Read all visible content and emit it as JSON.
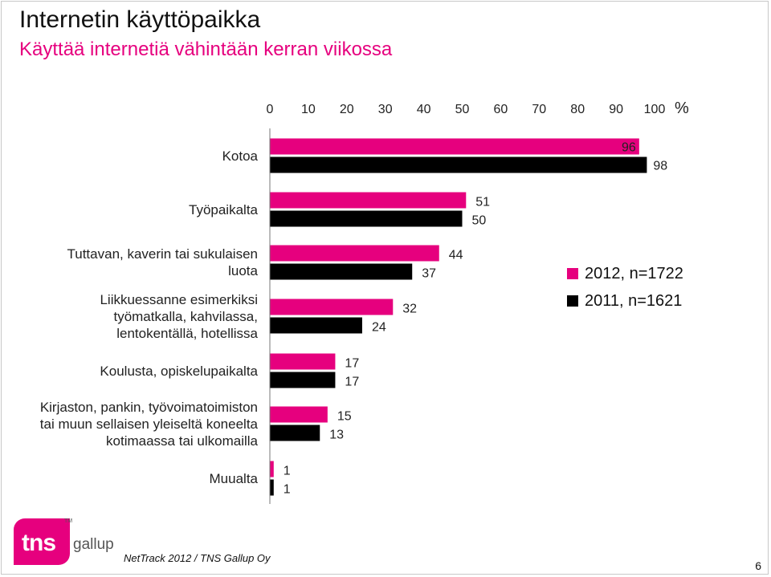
{
  "header": {
    "title": "Internetin käyttöpaikka",
    "subtitle": "Käyttää internetiä vähintään kerran viikossa"
  },
  "chart_data": {
    "type": "bar",
    "orientation": "horizontal",
    "axis_unit": "%",
    "xlim": [
      0,
      100
    ],
    "ticks": [
      0,
      10,
      20,
      30,
      40,
      50,
      60,
      70,
      80,
      90,
      100
    ],
    "grid": false,
    "legend_position": "right",
    "categories": [
      "Kotoa",
      "Työpaikalta",
      "Tuttavan, kaverin tai sukulaisen luota",
      "Liikkuessanne esimerkiksi työmatkalla, kahvilassa, lentokentällä, hotellissa",
      "Koulusta, opiskelupaikalta",
      "Kirjaston, pankin, työvoimatoimiston tai muun sellaisen yleiseltä koneelta kotimaassa tai ulkomailla",
      "Muualta"
    ],
    "category_lines": [
      [
        "Kotoa"
      ],
      [
        "Työpaikalta"
      ],
      [
        "Tuttavan, kaverin tai sukulaisen",
        "luota"
      ],
      [
        "Liikkuessanne esimerkiksi",
        "työmatkalla, kahvilassa,",
        "lentokentällä, hotellissa"
      ],
      [
        "Koulusta, opiskelupaikalta"
      ],
      [
        "Kirjaston, pankin, työvoimatoimiston",
        "tai muun sellaisen yleiseltä koneelta",
        "kotimaassa tai ulkomailla"
      ],
      [
        "Muualta"
      ]
    ],
    "series": [
      {
        "name": "2012, n=1722",
        "color": "#e6007e",
        "values": [
          96,
          51,
          44,
          32,
          17,
          15,
          1
        ]
      },
      {
        "name": "2011, n=1621",
        "color": "#000000",
        "values": [
          98,
          50,
          37,
          24,
          17,
          13,
          1
        ]
      }
    ]
  },
  "footer": {
    "logo_text": "tns",
    "logo_sub": "gallup",
    "logo_tm": "TM",
    "source": "NetTrack 2012 / TNS Gallup Oy",
    "page": "6"
  }
}
